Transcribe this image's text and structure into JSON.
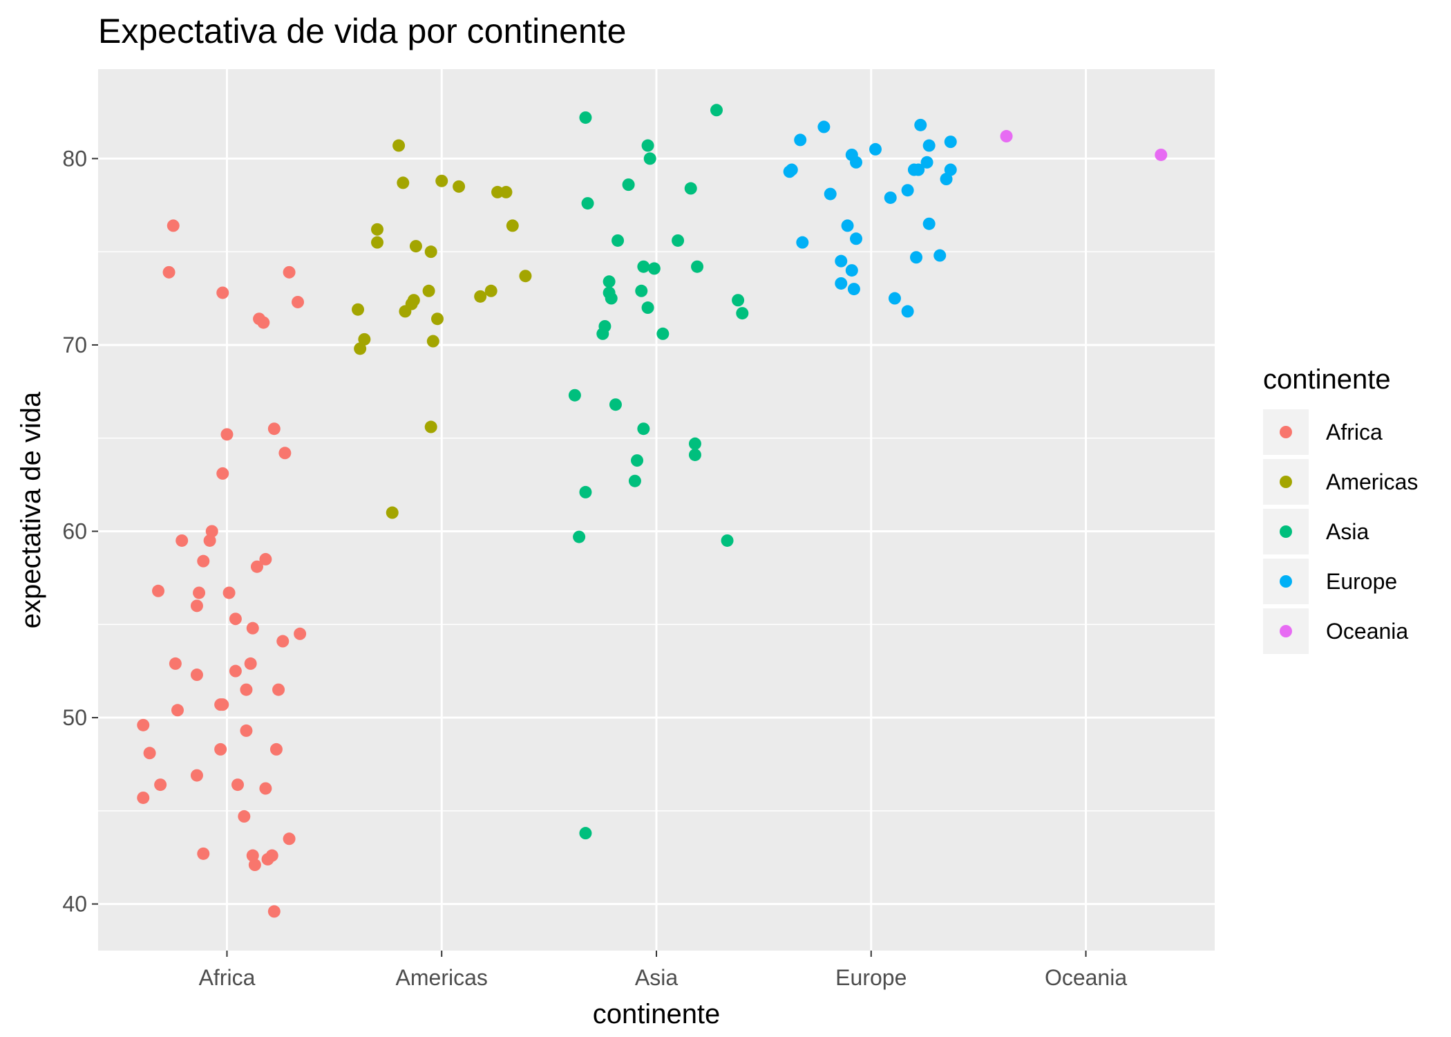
{
  "chart_data": {
    "type": "scatter",
    "title": "Expectativa de vida por continente",
    "xlabel": "continente",
    "ylabel": "expectativa de vida",
    "categories": [
      "Africa",
      "Americas",
      "Asia",
      "Europe",
      "Oceania"
    ],
    "yticks": [
      40,
      50,
      60,
      70,
      80
    ],
    "ylim": [
      37.5,
      84.8
    ],
    "grid": true,
    "legend": {
      "title": "continente",
      "placement": "right",
      "entries": [
        "Africa",
        "Americas",
        "Asia",
        "Europe",
        "Oceania"
      ]
    },
    "colors": {
      "Africa": "#F8766D",
      "Americas": "#A3A500",
      "Asia": "#00BF7D",
      "Europe": "#00B0F6",
      "Oceania": "#E76BF3"
    },
    "series": [
      {
        "name": "Africa",
        "points": [
          [
            -0.25,
            76.4
          ],
          [
            -0.27,
            73.9
          ],
          [
            -0.02,
            72.8
          ],
          [
            0.29,
            73.9
          ],
          [
            0.33,
            72.3
          ],
          [
            0.15,
            71.4
          ],
          [
            0.17,
            71.2
          ],
          [
            0.22,
            65.5
          ],
          [
            0.27,
            64.2
          ],
          [
            0.0,
            65.2
          ],
          [
            -0.02,
            63.1
          ],
          [
            -0.07,
            60.0
          ],
          [
            -0.21,
            59.5
          ],
          [
            -0.08,
            59.5
          ],
          [
            -0.11,
            58.4
          ],
          [
            0.18,
            58.5
          ],
          [
            0.14,
            58.1
          ],
          [
            -0.32,
            56.8
          ],
          [
            -0.13,
            56.7
          ],
          [
            0.01,
            56.7
          ],
          [
            -0.14,
            56.0
          ],
          [
            0.04,
            55.3
          ],
          [
            0.12,
            54.8
          ],
          [
            0.34,
            54.5
          ],
          [
            0.26,
            54.1
          ],
          [
            -0.24,
            52.9
          ],
          [
            0.11,
            52.9
          ],
          [
            0.04,
            52.5
          ],
          [
            -0.14,
            52.3
          ],
          [
            0.09,
            51.5
          ],
          [
            0.24,
            51.5
          ],
          [
            -0.23,
            50.4
          ],
          [
            -0.03,
            50.7
          ],
          [
            -0.02,
            50.7
          ],
          [
            -0.39,
            49.6
          ],
          [
            0.09,
            49.3
          ],
          [
            -0.36,
            48.1
          ],
          [
            -0.03,
            48.3
          ],
          [
            0.23,
            48.3
          ],
          [
            -0.31,
            46.4
          ],
          [
            -0.14,
            46.9
          ],
          [
            0.05,
            46.4
          ],
          [
            0.18,
            46.2
          ],
          [
            -0.39,
            45.7
          ],
          [
            0.08,
            44.7
          ],
          [
            -0.11,
            42.7
          ],
          [
            0.12,
            42.6
          ],
          [
            0.13,
            42.1
          ],
          [
            0.19,
            42.4
          ],
          [
            0.21,
            42.6
          ],
          [
            0.29,
            43.5
          ],
          [
            0.22,
            39.6
          ]
        ]
      },
      {
        "name": "Americas",
        "points": [
          [
            -0.2,
            80.7
          ],
          [
            -0.18,
            78.7
          ],
          [
            0.0,
            78.8
          ],
          [
            0.08,
            78.5
          ],
          [
            0.26,
            78.2
          ],
          [
            0.3,
            78.2
          ],
          [
            -0.3,
            76.2
          ],
          [
            -0.3,
            75.5
          ],
          [
            0.33,
            76.4
          ],
          [
            -0.12,
            75.3
          ],
          [
            -0.05,
            75.0
          ],
          [
            0.39,
            73.7
          ],
          [
            -0.39,
            71.9
          ],
          [
            -0.17,
            71.8
          ],
          [
            -0.14,
            72.2
          ],
          [
            -0.13,
            72.4
          ],
          [
            -0.06,
            72.9
          ],
          [
            0.18,
            72.6
          ],
          [
            0.23,
            72.9
          ],
          [
            -0.02,
            71.4
          ],
          [
            -0.36,
            70.3
          ],
          [
            -0.38,
            69.8
          ],
          [
            -0.04,
            70.2
          ],
          [
            -0.23,
            61.0
          ],
          [
            -0.05,
            65.6
          ]
        ]
      },
      {
        "name": "Asia",
        "points": [
          [
            -0.33,
            82.2
          ],
          [
            0.28,
            82.6
          ],
          [
            -0.04,
            80.7
          ],
          [
            -0.03,
            80.0
          ],
          [
            -0.32,
            77.6
          ],
          [
            -0.13,
            78.6
          ],
          [
            0.16,
            78.4
          ],
          [
            -0.18,
            75.6
          ],
          [
            0.1,
            75.6
          ],
          [
            -0.06,
            74.2
          ],
          [
            -0.01,
            74.1
          ],
          [
            0.19,
            74.2
          ],
          [
            -0.22,
            73.4
          ],
          [
            -0.22,
            72.8
          ],
          [
            -0.21,
            72.5
          ],
          [
            -0.07,
            72.9
          ],
          [
            -0.04,
            72.0
          ],
          [
            0.38,
            72.4
          ],
          [
            0.4,
            71.7
          ],
          [
            -0.24,
            71.0
          ],
          [
            -0.25,
            70.6
          ],
          [
            0.03,
            70.6
          ],
          [
            -0.38,
            67.3
          ],
          [
            -0.19,
            66.8
          ],
          [
            -0.06,
            65.5
          ],
          [
            0.18,
            64.7
          ],
          [
            0.18,
            64.1
          ],
          [
            -0.09,
            63.8
          ],
          [
            -0.1,
            62.7
          ],
          [
            -0.33,
            62.1
          ],
          [
            -0.36,
            59.7
          ],
          [
            0.33,
            59.5
          ],
          [
            -0.33,
            43.8
          ]
        ]
      },
      {
        "name": "Europe",
        "points": [
          [
            -0.22,
            81.7
          ],
          [
            0.23,
            81.8
          ],
          [
            -0.33,
            81.0
          ],
          [
            0.37,
            80.9
          ],
          [
            0.02,
            80.5
          ],
          [
            -0.09,
            80.2
          ],
          [
            0.27,
            80.7
          ],
          [
            -0.07,
            79.8
          ],
          [
            -0.38,
            79.3
          ],
          [
            -0.37,
            79.4
          ],
          [
            0.2,
            79.4
          ],
          [
            0.22,
            79.4
          ],
          [
            0.26,
            79.8
          ],
          [
            0.37,
            79.4
          ],
          [
            0.35,
            78.9
          ],
          [
            -0.19,
            78.1
          ],
          [
            0.09,
            77.9
          ],
          [
            0.17,
            78.3
          ],
          [
            -0.11,
            76.4
          ],
          [
            -0.07,
            75.7
          ],
          [
            0.27,
            76.5
          ],
          [
            -0.32,
            75.5
          ],
          [
            -0.14,
            74.5
          ],
          [
            0.21,
            74.7
          ],
          [
            0.32,
            74.8
          ],
          [
            -0.09,
            74.0
          ],
          [
            -0.14,
            73.3
          ],
          [
            -0.08,
            73.0
          ],
          [
            0.11,
            72.5
          ],
          [
            0.17,
            71.8
          ]
        ]
      },
      {
        "name": "Oceania",
        "points": [
          [
            -0.37,
            81.2
          ],
          [
            0.35,
            80.2
          ]
        ]
      }
    ]
  }
}
